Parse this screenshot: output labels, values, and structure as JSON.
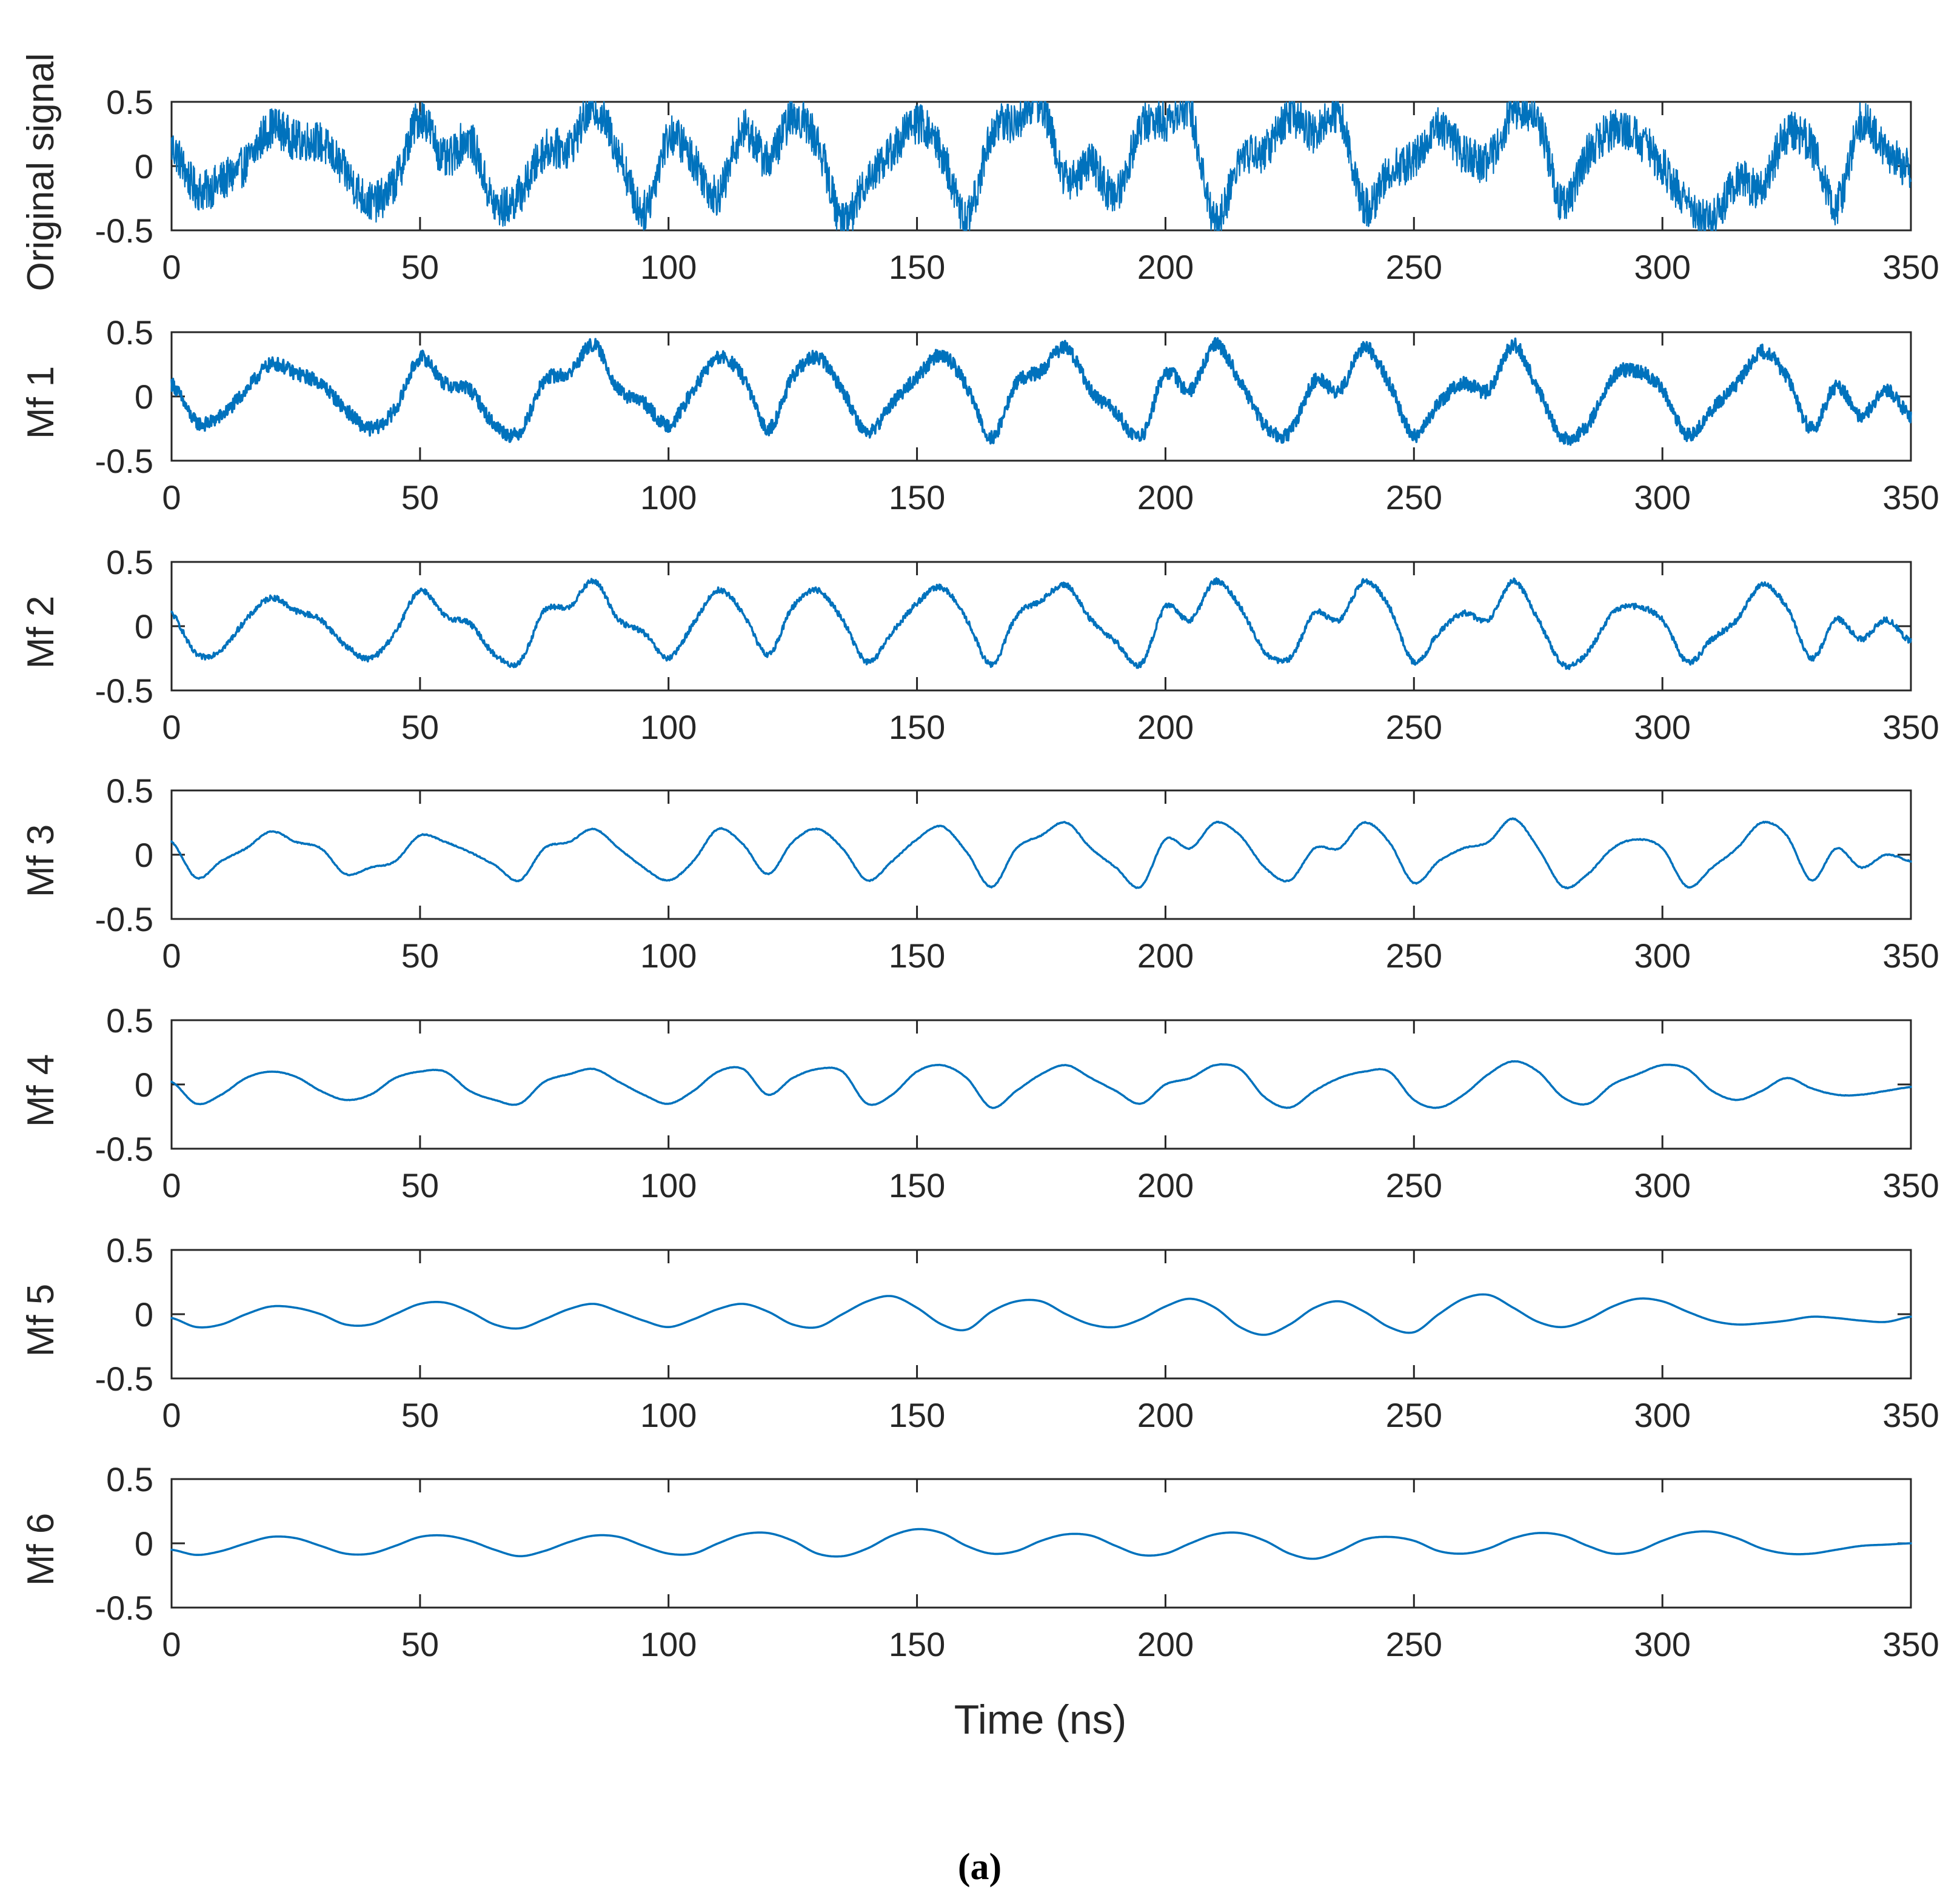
{
  "chart_data": {
    "type": "line",
    "figure_caption": "(a)",
    "xlabel": "Time (ns)",
    "xlim": [
      0,
      350
    ],
    "ylim": [
      -0.5,
      0.5
    ],
    "xticks": [
      0,
      50,
      100,
      150,
      200,
      250,
      300,
      350
    ],
    "yticks": [
      -0.5,
      0,
      0.5
    ],
    "xtick_labels": [
      "0",
      "50",
      "100",
      "150",
      "200",
      "250",
      "300",
      "350"
    ],
    "ytick_labels": [
      "-0.5",
      "0",
      "0.5"
    ],
    "line_color": "#0072BD",
    "x_step": 5,
    "subplots": [
      {
        "ylabel": "Original signal",
        "values": [
          0.15,
          -0.18,
          -0.12,
          0.02,
          0.3,
          0.2,
          0.18,
          -0.05,
          -0.28,
          -0.12,
          0.38,
          0.05,
          0.2,
          -0.3,
          -0.22,
          0.12,
          0.15,
          0.45,
          0.1,
          -0.35,
          0.22,
          0.05,
          -0.22,
          0.28,
          0.05,
          0.38,
          0.18,
          -0.42,
          -0.1,
          0.12,
          0.33,
          0.1,
          -0.4,
          0.25,
          0.35,
          0.48,
          -0.1,
          0.02,
          -0.22,
          0.3,
          0.35,
          0.4,
          -0.42,
          0.05,
          0.12,
          0.38,
          0.25,
          0.4,
          -0.3,
          -0.05,
          0.05,
          0.3,
          0.1,
          0.05,
          0.4,
          0.35,
          -0.3,
          0.1,
          0.28,
          0.22,
          0.0,
          -0.3,
          -0.42,
          -0.12,
          -0.15,
          0.25,
          0.15,
          -0.3,
          0.35,
          0.12,
          -0.02
        ]
      },
      {
        "ylabel": "Mf 1",
        "values": [
          0.1,
          -0.2,
          -0.15,
          0.05,
          0.25,
          0.18,
          0.1,
          -0.1,
          -0.25,
          -0.1,
          0.3,
          0.1,
          0.05,
          -0.22,
          -0.28,
          0.12,
          0.18,
          0.4,
          0.05,
          -0.05,
          -0.22,
          0.05,
          0.3,
          0.15,
          -0.25,
          0.15,
          0.3,
          0.05,
          -0.28,
          -0.05,
          0.15,
          0.32,
          0.08,
          -0.32,
          0.1,
          0.2,
          0.38,
          0.05,
          -0.12,
          -0.32,
          0.18,
          0.05,
          0.4,
          0.12,
          -0.22,
          -0.28,
          0.12,
          0.05,
          0.38,
          0.1,
          -0.3,
          -0.05,
          0.1,
          0.05,
          0.4,
          0.05,
          -0.32,
          -0.22,
          0.15,
          0.2,
          0.05,
          -0.3,
          -0.1,
          0.1,
          0.35,
          0.15,
          -0.25,
          0.08,
          -0.15,
          0.05,
          -0.15
        ]
      },
      {
        "ylabel": "Mf 2",
        "values": [
          0.1,
          -0.22,
          -0.18,
          0.05,
          0.22,
          0.12,
          0.05,
          -0.15,
          -0.25,
          -0.05,
          0.28,
          0.08,
          0.02,
          -0.22,
          -0.28,
          0.12,
          0.15,
          0.35,
          0.05,
          -0.05,
          -0.25,
          0.02,
          0.28,
          0.1,
          -0.22,
          0.15,
          0.28,
          0.05,
          -0.28,
          -0.05,
          0.18,
          0.3,
          0.05,
          -0.3,
          0.08,
          0.2,
          0.32,
          0.05,
          -0.12,
          -0.3,
          0.15,
          0.05,
          0.35,
          0.15,
          -0.2,
          -0.25,
          0.1,
          0.05,
          0.35,
          0.15,
          -0.28,
          -0.05,
          0.1,
          0.05,
          0.35,
          0.05,
          -0.3,
          -0.2,
          0.1,
          0.15,
          0.05,
          -0.28,
          -0.1,
          0.05,
          0.32,
          0.15,
          -0.25,
          0.05,
          -0.1,
          0.05,
          -0.12
        ]
      },
      {
        "ylabel": "Mf 3",
        "values": [
          0.1,
          -0.18,
          -0.05,
          0.05,
          0.18,
          0.1,
          0.05,
          -0.15,
          -0.1,
          -0.05,
          0.15,
          0.1,
          0.02,
          -0.08,
          -0.2,
          0.05,
          0.1,
          0.2,
          0.05,
          -0.1,
          -0.2,
          -0.05,
          0.2,
          0.08,
          -0.15,
          0.1,
          0.2,
          0.05,
          -0.2,
          -0.05,
          0.12,
          0.22,
          0.02,
          -0.25,
          0.05,
          0.15,
          0.25,
          0.05,
          -0.1,
          -0.25,
          0.12,
          0.05,
          0.25,
          0.15,
          -0.1,
          -0.2,
          0.05,
          0.05,
          0.25,
          0.1,
          -0.22,
          -0.05,
          0.05,
          0.1,
          0.28,
          0.05,
          -0.25,
          -0.15,
          0.05,
          0.12,
          0.05,
          -0.25,
          -0.1,
          0.05,
          0.25,
          0.15,
          -0.2,
          0.05,
          -0.1,
          0.0,
          -0.05
        ]
      },
      {
        "ylabel": "Mf 4",
        "values": [
          0.02,
          -0.15,
          -0.08,
          0.05,
          0.1,
          0.06,
          -0.05,
          -0.12,
          -0.08,
          0.05,
          0.1,
          0.1,
          -0.05,
          -0.12,
          -0.15,
          0.02,
          0.08,
          0.12,
          0.02,
          -0.08,
          -0.15,
          -0.05,
          0.1,
          0.12,
          -0.08,
          0.05,
          0.12,
          0.1,
          -0.15,
          -0.08,
          0.1,
          0.15,
          0.05,
          -0.18,
          -0.05,
          0.08,
          0.15,
          0.05,
          -0.05,
          -0.15,
          0.0,
          0.05,
          0.15,
          0.12,
          -0.1,
          -0.18,
          -0.05,
          0.05,
          0.1,
          0.1,
          -0.12,
          -0.18,
          -0.08,
          0.08,
          0.18,
          0.1,
          -0.1,
          -0.15,
          0.0,
          0.08,
          0.15,
          0.12,
          -0.05,
          -0.12,
          -0.05,
          0.05,
          -0.03,
          -0.08,
          -0.08,
          -0.05,
          -0.02
        ]
      },
      {
        "ylabel": "Mf 5",
        "values": [
          -0.03,
          -0.1,
          -0.08,
          0.0,
          0.06,
          0.05,
          0.0,
          -0.08,
          -0.08,
          0.0,
          0.08,
          0.09,
          0.02,
          -0.08,
          -0.11,
          -0.04,
          0.04,
          0.08,
          0.02,
          -0.05,
          -0.1,
          -0.04,
          0.04,
          0.08,
          0.02,
          -0.08,
          -0.1,
          0.0,
          0.1,
          0.14,
          0.05,
          -0.08,
          -0.12,
          0.02,
          0.1,
          0.1,
          0.0,
          -0.08,
          -0.1,
          -0.04,
          0.06,
          0.12,
          0.05,
          -0.1,
          -0.16,
          -0.08,
          0.05,
          0.1,
          0.02,
          -0.1,
          -0.14,
          0.0,
          0.12,
          0.15,
          0.05,
          -0.06,
          -0.1,
          -0.04,
          0.06,
          0.12,
          0.1,
          0.02,
          -0.05,
          -0.08,
          -0.07,
          -0.05,
          -0.02,
          -0.03,
          -0.05,
          -0.06,
          -0.02
        ]
      },
      {
        "ylabel": "Mf 6",
        "values": [
          -0.05,
          -0.09,
          -0.06,
          0.0,
          0.05,
          0.04,
          -0.02,
          -0.08,
          -0.08,
          -0.02,
          0.05,
          0.06,
          0.02,
          -0.05,
          -0.1,
          -0.06,
          0.01,
          0.06,
          0.05,
          -0.02,
          -0.08,
          -0.08,
          0.0,
          0.07,
          0.08,
          0.02,
          -0.08,
          -0.1,
          -0.04,
          0.06,
          0.11,
          0.08,
          -0.02,
          -0.08,
          -0.06,
          0.02,
          0.07,
          0.06,
          -0.02,
          -0.09,
          -0.08,
          0.0,
          0.07,
          0.08,
          0.02,
          -0.08,
          -0.12,
          -0.06,
          0.03,
          0.05,
          0.02,
          -0.06,
          -0.08,
          -0.04,
          0.04,
          0.08,
          0.06,
          -0.02,
          -0.08,
          -0.06,
          0.02,
          0.08,
          0.09,
          0.04,
          -0.04,
          -0.08,
          -0.08,
          -0.05,
          -0.02,
          -0.01,
          0.0
        ]
      }
    ]
  }
}
